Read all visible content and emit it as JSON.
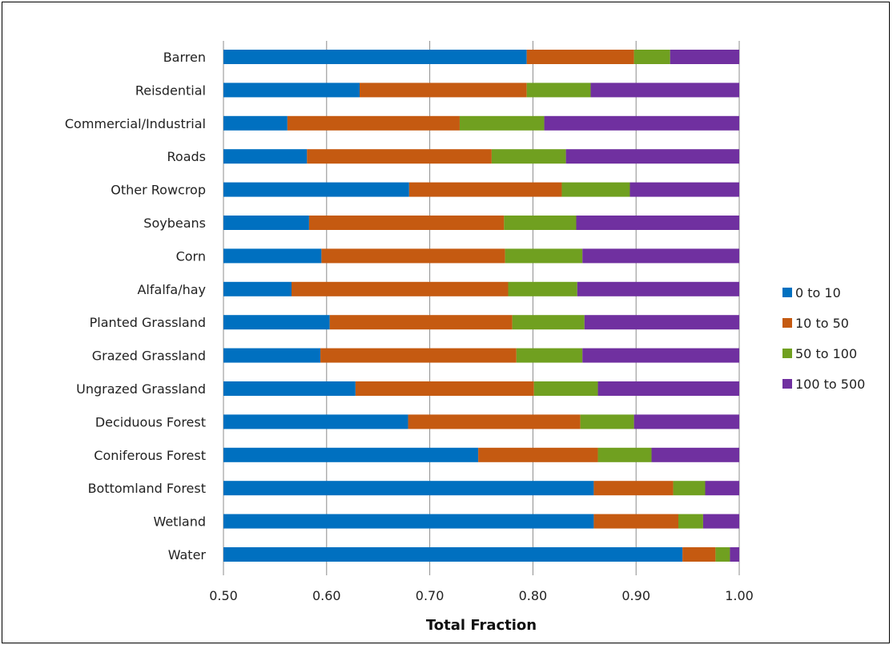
{
  "chart_data": {
    "type": "bar",
    "orientation": "horizontal",
    "stacked": true,
    "title": "",
    "xlabel": "Total Fraction",
    "ylabel": "",
    "xlim": [
      0.5,
      1.0
    ],
    "xticks": [
      "0.50",
      "0.60",
      "0.70",
      "0.80",
      "0.90",
      "1.00"
    ],
    "grid": "vertical",
    "legend_position": "right",
    "categories": [
      "Barren",
      "Reisdential",
      "Commercial/Industrial",
      "Roads",
      "Other Rowcrop",
      "Soybeans",
      "Corn",
      "Alfalfa/hay",
      "Planted Grassland",
      "Grazed Grassland",
      "Ungrazed Grassland",
      "Deciduous Forest",
      "Coniferous Forest",
      "Bottomland Forest",
      "Wetland",
      "Water"
    ],
    "cumulative_ends": [
      [
        0.794,
        0.898,
        0.933,
        1.0
      ],
      [
        0.632,
        0.794,
        0.856,
        1.0
      ],
      [
        0.562,
        0.729,
        0.811,
        1.0
      ],
      [
        0.581,
        0.76,
        0.832,
        1.0
      ],
      [
        0.68,
        0.828,
        0.894,
        1.0
      ],
      [
        0.583,
        0.772,
        0.842,
        1.0
      ],
      [
        0.595,
        0.773,
        0.848,
        1.0
      ],
      [
        0.566,
        0.776,
        0.843,
        1.0
      ],
      [
        0.603,
        0.78,
        0.85,
        1.0
      ],
      [
        0.594,
        0.784,
        0.848,
        1.0
      ],
      [
        0.628,
        0.801,
        0.863,
        1.0
      ],
      [
        0.679,
        0.846,
        0.898,
        1.0
      ],
      [
        0.747,
        0.863,
        0.915,
        1.0
      ],
      [
        0.859,
        0.936,
        0.967,
        1.0
      ],
      [
        0.859,
        0.941,
        0.965,
        1.0
      ],
      [
        0.945,
        0.977,
        0.991,
        1.0
      ]
    ],
    "series": [
      {
        "name": "0 to 10",
        "color": "#0070c0"
      },
      {
        "name": "10 to 50",
        "color": "#c55a11"
      },
      {
        "name": "50 to 100",
        "color": "#70a020"
      },
      {
        "name": "100 to 500",
        "color": "#7030a0"
      }
    ]
  }
}
